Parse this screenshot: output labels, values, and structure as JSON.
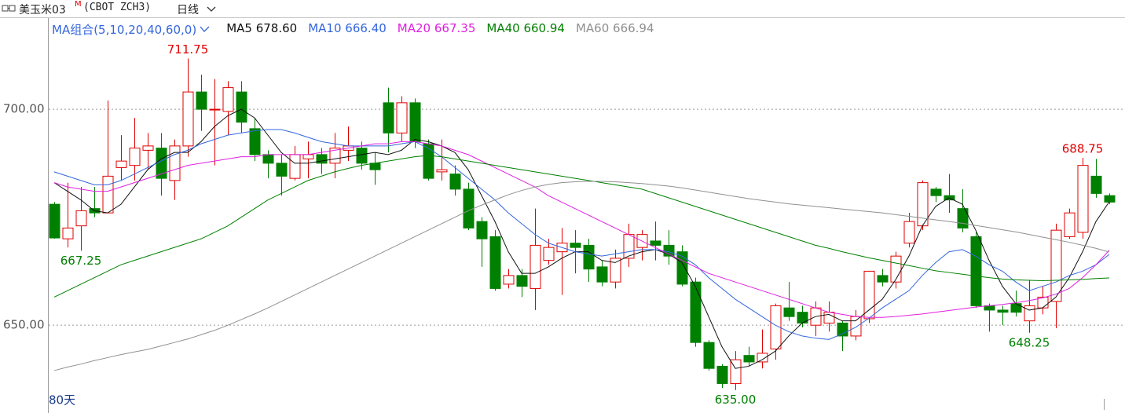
{
  "chart_data": {
    "type": "candlestick",
    "title": "美玉米03",
    "title_badge": "M",
    "subtitle": "(CBOT ZCH3)",
    "period": "日线",
    "ma_group": "MA组合(5,10,20,40,60,0)",
    "footer": "80天",
    "up_color": "#e00000",
    "down_color": "#008000",
    "ylim": [
      630.4,
      720.2
    ],
    "yticks": [
      {
        "value": 700,
        "label": "700.00"
      },
      {
        "value": 650,
        "label": "650.00"
      }
    ],
    "grid": true,
    "open": [
      678,
      670,
      673,
      677,
      676,
      686.5,
      687,
      690.5,
      691,
      683.5,
      691.5,
      704,
      700,
      699.5,
      704,
      695.5,
      689.5,
      687.5,
      684,
      688.5,
      689.5,
      687.5,
      690.5,
      691,
      687.5,
      701.5,
      694.5,
      701.5,
      692,
      685.5,
      685,
      681.5,
      674,
      670.5,
      659.5,
      661.5,
      658.5,
      665,
      667,
      669,
      668.5,
      663.5,
      660,
      665.5,
      668,
      669.5,
      668.5,
      667,
      660,
      646,
      640.5,
      636.5,
      643,
      641.5,
      644.5,
      654,
      653,
      650,
      650.5,
      650.5,
      647.5,
      651.5,
      661.5,
      660,
      669,
      673,
      681.5,
      680,
      677,
      670.5,
      654.5,
      653.5,
      655,
      651,
      654,
      655.5,
      670.5,
      671.5,
      684.5,
      680
    ],
    "high": [
      678.5,
      683,
      682,
      682,
      702,
      694,
      698,
      694.5,
      694.5,
      693,
      711.75,
      708,
      707,
      706.5,
      706.5,
      698,
      690.5,
      689.5,
      691.5,
      692.5,
      691,
      694.5,
      696,
      692.5,
      690,
      705,
      703,
      702.5,
      693,
      693,
      687,
      683,
      675,
      672,
      663,
      663,
      677,
      670,
      672.5,
      672,
      670,
      665,
      667.5,
      673.5,
      672,
      674,
      672,
      668.5,
      661,
      646.5,
      641,
      644,
      645,
      649,
      655,
      660,
      654.5,
      655.5,
      655.5,
      651,
      653.5,
      662.5,
      663,
      667,
      676,
      683.5,
      682,
      685,
      681.5,
      671.5,
      655,
      654.5,
      658,
      660.5,
      659,
      673.5,
      677,
      688.75,
      688.5,
      680.5
    ],
    "low": [
      670,
      668,
      667.25,
      675,
      676,
      683.5,
      683.5,
      686,
      680,
      679,
      689,
      695,
      687,
      694,
      694.5,
      688,
      684,
      680,
      683.5,
      684,
      685,
      684,
      688,
      686,
      682.5,
      690,
      692.5,
      691,
      683.5,
      683.5,
      680,
      672,
      663.5,
      658,
      658.5,
      656.5,
      653.5,
      664,
      657,
      662,
      660,
      659,
      658.5,
      663.5,
      665,
      665,
      664,
      659,
      645,
      639.5,
      635.5,
      635,
      640.5,
      640,
      642,
      651,
      649.5,
      647.5,
      648.5,
      644,
      646.5,
      650.5,
      659,
      658.5,
      668,
      672,
      678.5,
      676,
      671.5,
      654,
      648.5,
      650,
      652,
      648.25,
      652.5,
      649.3,
      670,
      670,
      679.5,
      678
    ],
    "close": [
      670.2,
      672.5,
      676.5,
      676,
      684.5,
      688,
      691,
      691.5,
      684,
      691.5,
      704,
      700,
      700,
      705,
      697,
      689.5,
      687.5,
      684.5,
      689.5,
      689.5,
      687.5,
      691,
      691.5,
      687.5,
      686,
      694.5,
      701.5,
      692.5,
      684,
      686,
      681.5,
      672.5,
      670,
      658.5,
      661.5,
      659,
      668.5,
      668,
      669,
      668,
      663,
      660,
      665.5,
      671,
      671,
      668.5,
      666,
      659.5,
      646,
      640,
      636.5,
      642,
      641.5,
      643.5,
      654.5,
      652,
      650.5,
      654,
      653,
      647.5,
      652,
      662.5,
      660,
      666,
      674,
      683,
      680,
      679,
      672.5,
      654.5,
      653.5,
      653,
      653,
      654.5,
      656.5,
      672,
      676,
      687,
      680.5,
      678.5
    ],
    "series": [
      {
        "name": "MA5",
        "legend_value": "678.60",
        "color": "#111111",
        "values": [
          683,
          681,
          679,
          676.5,
          676,
          678,
          682,
          686,
          688.5,
          690,
          690,
          692.5,
          696,
          698.5,
          700,
          698,
          694,
          690,
          687.5,
          687.5,
          688,
          688.5,
          689,
          689.5,
          690,
          689.5,
          690.5,
          693,
          692.5,
          691.5,
          690,
          686,
          680,
          674,
          667,
          662,
          662,
          663.5,
          665.5,
          667,
          667,
          665,
          664.5,
          666,
          667,
          667.5,
          666.5,
          664.5,
          659,
          652,
          645,
          640,
          640.5,
          642,
          644,
          647.5,
          650.5,
          652,
          652.5,
          651,
          651,
          653.5,
          656,
          660.5,
          666,
          673,
          677.5,
          679.5,
          678,
          672,
          665,
          659,
          655,
          653.5,
          654,
          656.5,
          661,
          667,
          674,
          678.6
        ]
      },
      {
        "name": "MA10",
        "legend_value": "666.40",
        "color": "#3366dd",
        "values": [
          685.5,
          684.5,
          683.5,
          682.5,
          682.5,
          683.5,
          685,
          686.5,
          688,
          689.5,
          690.5,
          692,
          693,
          694,
          694.5,
          695,
          695.3,
          695.3,
          694.5,
          693.5,
          692.5,
          692,
          691.5,
          691.5,
          691.5,
          691.5,
          692,
          692.5,
          691,
          689,
          686.5,
          684,
          681.5,
          679,
          676,
          673.5,
          671,
          669,
          668,
          667,
          666.5,
          666,
          666.5,
          667,
          667.5,
          667.5,
          667,
          666,
          664,
          661,
          658.5,
          656,
          654,
          652,
          650,
          648.5,
          647.5,
          647,
          646.7,
          648,
          649.5,
          651.6,
          654,
          656,
          658,
          661.5,
          664.5,
          667,
          667.5,
          666,
          664,
          662.5,
          660,
          658,
          659,
          660,
          661.5,
          662.5,
          664,
          666.4
        ]
      },
      {
        "name": "MA20",
        "legend_value": "667.35",
        "color": "#e020e0",
        "values": [
          683,
          682,
          681.5,
          681,
          681,
          682,
          683,
          684,
          685,
          686,
          687,
          687.5,
          688,
          688.5,
          689,
          689,
          689.5,
          689.5,
          689.5,
          689.5,
          690,
          690.5,
          691,
          691.5,
          692,
          692,
          692.5,
          692.5,
          692,
          691.5,
          690.5,
          689.5,
          688,
          686.5,
          685,
          683.5,
          682,
          680,
          678.5,
          677,
          675.5,
          674,
          672.5,
          671,
          669.5,
          668,
          666.5,
          665,
          663.5,
          662,
          661,
          660,
          659,
          658,
          657,
          656,
          655,
          654,
          653,
          652.5,
          652,
          651.8,
          651.8,
          652,
          652.3,
          652.6,
          653,
          653.4,
          653.8,
          654.2,
          654.5,
          654.8,
          655.2,
          655.7,
          656.3,
          657.2,
          658.5,
          661,
          664,
          667.35
        ]
      },
      {
        "name": "MA40",
        "legend_value": "660.94",
        "color": "#008000",
        "values": [
          656.5,
          658,
          659.5,
          661,
          662.5,
          664,
          665,
          666,
          667,
          668,
          669,
          670,
          671.5,
          673,
          675,
          677,
          679,
          680.5,
          682,
          683.5,
          684.5,
          685.5,
          686.3,
          687,
          687.5,
          688,
          688.5,
          689,
          689.3,
          689,
          688.5,
          688,
          687.5,
          687,
          686.5,
          686,
          685.5,
          685,
          684.5,
          684,
          683.5,
          683,
          682.5,
          682,
          681.5,
          680.5,
          679.5,
          678.5,
          677.5,
          676.5,
          675.5,
          674.5,
          673.5,
          672.5,
          671.5,
          670.5,
          669.5,
          668.5,
          667.8,
          667,
          666.3,
          665.6,
          665,
          664.4,
          663.8,
          663.2,
          662.6,
          662.2,
          661.8,
          661.4,
          661,
          660.7,
          660.5,
          660.4,
          660.3,
          660.4,
          660.5,
          660.6,
          660.8,
          660.94
        ]
      },
      {
        "name": "MA60",
        "legend_value": "666.94",
        "color": "#909090",
        "values": [
          639.5,
          640.3,
          641,
          641.8,
          642.5,
          643.2,
          643.8,
          644.4,
          645.2,
          646,
          646.8,
          647.8,
          648.8,
          650,
          651.3,
          652.6,
          654,
          655.5,
          657,
          658.5,
          660,
          661.5,
          663,
          664.5,
          666,
          667.5,
          669,
          670.5,
          672,
          673.5,
          675,
          676.5,
          677.8,
          679,
          680.2,
          681.2,
          682,
          682.6,
          683,
          683.2,
          683.3,
          683.3,
          683.2,
          683,
          682.8,
          682.5,
          682.2,
          681.8,
          681.3,
          680.8,
          680.3,
          679.8,
          679.3,
          678.9,
          678.5,
          678.1,
          677.8,
          677.5,
          677.2,
          676.9,
          676.6,
          676.3,
          676,
          675.6,
          675.2,
          674.8,
          674.4,
          674,
          673.6,
          673.1,
          672.6,
          672.1,
          671.6,
          671,
          670.4,
          669.8,
          669.2,
          668.5,
          667.8,
          666.94
        ]
      }
    ],
    "annotations": [
      {
        "label": "711.75",
        "value": 711.75,
        "kind": "high",
        "color": "#e00000"
      },
      {
        "label": "667.25",
        "value": 667.25,
        "kind": "low",
        "color": "#008000"
      },
      {
        "label": "635.00",
        "value": 635,
        "kind": "low",
        "color": "#008000"
      },
      {
        "label": "648.25",
        "value": 648.25,
        "kind": "low",
        "color": "#008000"
      },
      {
        "label": "688.75",
        "value": 688.75,
        "kind": "high",
        "color": "#e00000"
      }
    ]
  }
}
